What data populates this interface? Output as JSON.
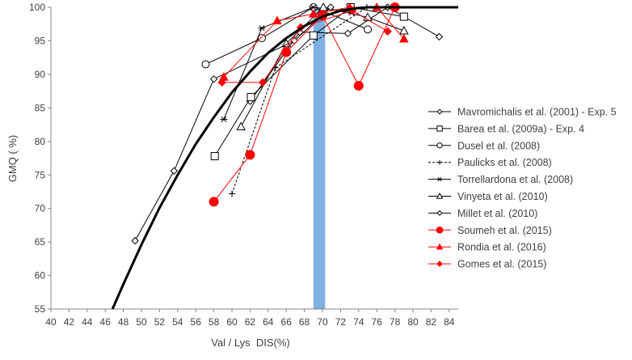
{
  "chart_data": {
    "type": "line",
    "title": "",
    "xlabel": "Val / Lys  DIS(%)",
    "ylabel": "GMQ ( %)",
    "xlim": [
      40,
      85
    ],
    "ylim": [
      55,
      100
    ],
    "xticks": [
      "40",
      "42",
      "44",
      "46",
      "48",
      "50",
      "52",
      "54",
      "56",
      "58",
      "60",
      "62",
      "64",
      "66",
      "68",
      "70",
      "72",
      "74",
      "76",
      "78",
      "80",
      "82",
      "84"
    ],
    "yticks": [
      "55",
      "60",
      "65",
      "70",
      "75",
      "80",
      "85",
      "90",
      "95",
      "100"
    ],
    "grid": false,
    "legend_position": "right",
    "highlight_band": {
      "x": [
        69,
        70.3
      ],
      "color": "#7eb3e1"
    },
    "fitted_curve": {
      "color": "#000000",
      "points": [
        [
          46.8,
          55
        ],
        [
          48,
          58.7
        ],
        [
          50,
          64.6
        ],
        [
          52,
          70.1
        ],
        [
          54,
          75
        ],
        [
          56,
          79.6
        ],
        [
          58,
          83.6
        ],
        [
          60,
          87.3
        ],
        [
          62,
          90.4
        ],
        [
          64,
          93.2
        ],
        [
          66,
          95.4
        ],
        [
          68,
          97.2
        ],
        [
          70,
          98.6
        ],
        [
          72,
          99.5
        ],
        [
          74,
          99.9
        ],
        [
          75,
          100
        ],
        [
          85,
          100
        ]
      ]
    },
    "series": [
      {
        "name": "Mavromichalis et al. (2001) - Exp. 5",
        "color": "#000000",
        "marker": "diamond-open",
        "dash": false,
        "points": [
          [
            62.0,
            86.0
          ],
          [
            67.5,
            96.3
          ],
          [
            72.8,
            96.1
          ],
          [
            77.2,
            100
          ],
          [
            82.9,
            95.6
          ]
        ]
      },
      {
        "name": "Barea et al. (2009a) - Exp. 4",
        "color": "#000000",
        "marker": "square-open",
        "dash": false,
        "points": [
          [
            58.1,
            77.8
          ],
          [
            62.1,
            86.6
          ],
          [
            69.0,
            95.8
          ],
          [
            73.1,
            100
          ],
          [
            79.0,
            98.6
          ]
        ]
      },
      {
        "name": "Dusel et al. (2008)",
        "color": "#000000",
        "marker": "circle-open",
        "dash": false,
        "points": [
          [
            57.1,
            91.5
          ],
          [
            63.3,
            95.4
          ],
          [
            69.0,
            100
          ],
          [
            75.0,
            96.7
          ]
        ]
      },
      {
        "name": "Paulicks et al. (2008)",
        "color": "#000000",
        "marker": "plus",
        "dash": true,
        "points": [
          [
            60.0,
            72.2
          ],
          [
            64.8,
            91.0
          ],
          [
            74.9,
            100
          ]
        ]
      },
      {
        "name": "Torrellardona et al. (2008)",
        "color": "#000000",
        "marker": "asterisk",
        "dash": false,
        "points": [
          [
            59.1,
            83.3
          ],
          [
            63.3,
            96.9
          ],
          [
            69.0,
            100
          ],
          [
            73.2,
            99.2
          ]
        ]
      },
      {
        "name": "Vinyeta et al. (2010)",
        "color": "#000000",
        "marker": "triangle-open",
        "dash": false,
        "points": [
          [
            61.0,
            82.2
          ],
          [
            66.0,
            94.6
          ],
          [
            70.1,
            100
          ],
          [
            75.0,
            98.5
          ],
          [
            79.0,
            96.5
          ]
        ]
      },
      {
        "name": "Millet et al. (2010)",
        "color": "#000000",
        "marker": "diamond-open",
        "dash": false,
        "points": [
          [
            49.3,
            65.2
          ],
          [
            53.6,
            75.6
          ],
          [
            58.0,
            89.3
          ],
          [
            66.9,
            95.0
          ],
          [
            70.9,
            100
          ]
        ]
      },
      {
        "name": "Soumeh et al. (2015)",
        "color": "#ff0000",
        "marker": "circle-filled",
        "dash": false,
        "points": [
          [
            58.0,
            71.0
          ],
          [
            62.0,
            78.0
          ],
          [
            66.0,
            93.3
          ],
          [
            70.0,
            98.8
          ],
          [
            74.0,
            88.3
          ],
          [
            78.0,
            100
          ]
        ]
      },
      {
        "name": "Rondia et al. (2016)",
        "color": "#ff0000",
        "marker": "triangle-filled",
        "dash": false,
        "points": [
          [
            59.1,
            89.6
          ],
          [
            65.0,
            98.0
          ],
          [
            69.0,
            99.0
          ],
          [
            73.0,
            100
          ],
          [
            76.0,
            100
          ],
          [
            79.0,
            95.3
          ]
        ]
      },
      {
        "name": "Gomes et al. (2015)",
        "color": "#ff0000",
        "marker": "diamond-filled",
        "dash": false,
        "points": [
          [
            58.9,
            88.8
          ],
          [
            63.4,
            88.8
          ],
          [
            67.6,
            97.0
          ],
          [
            73.3,
            99.5
          ],
          [
            77.2,
            96.4
          ]
        ]
      }
    ]
  }
}
